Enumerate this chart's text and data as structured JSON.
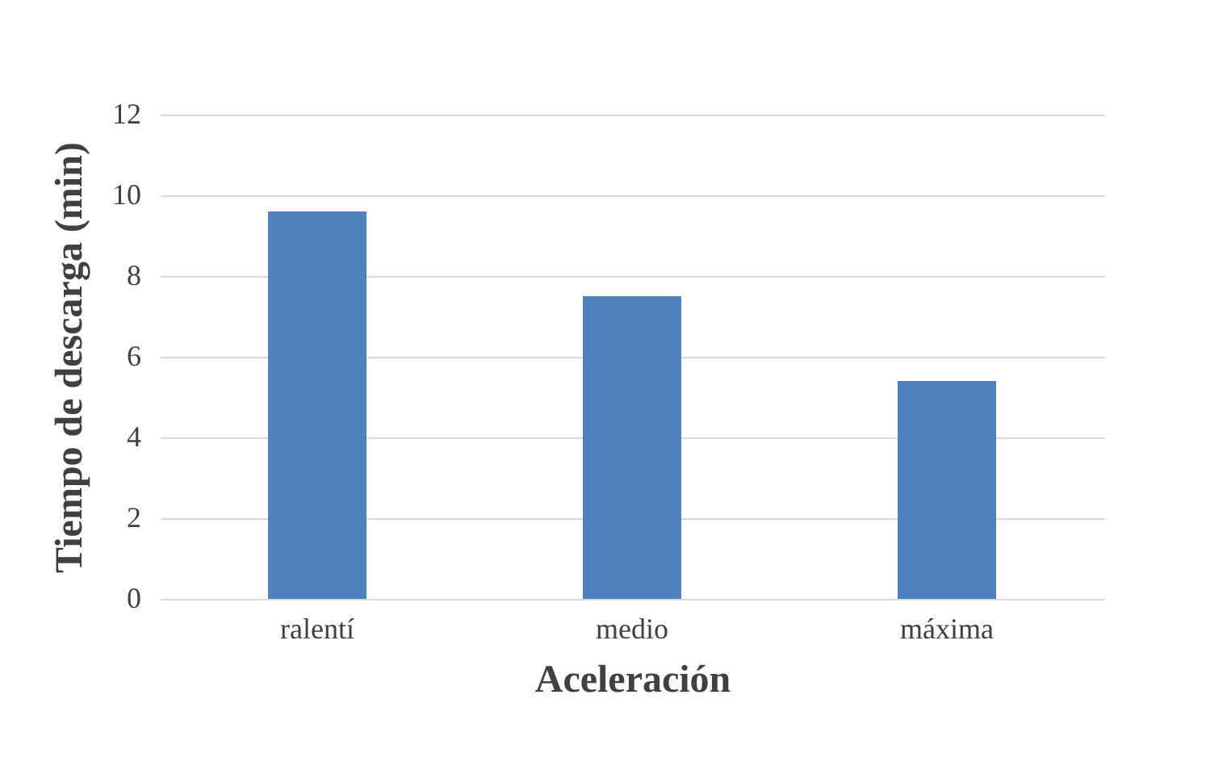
{
  "chart_data": {
    "type": "bar",
    "xlabel": "Aceleración",
    "ylabel": "Tiempo de descarga (min)",
    "categories": [
      "ralentí",
      "medio",
      "máxima"
    ],
    "values": [
      9.6,
      7.5,
      5.4
    ],
    "color": "#4f81bd",
    "ylim": [
      0,
      12
    ],
    "yticks": [
      0,
      2,
      4,
      6,
      8,
      10,
      12
    ],
    "grid": "y"
  }
}
